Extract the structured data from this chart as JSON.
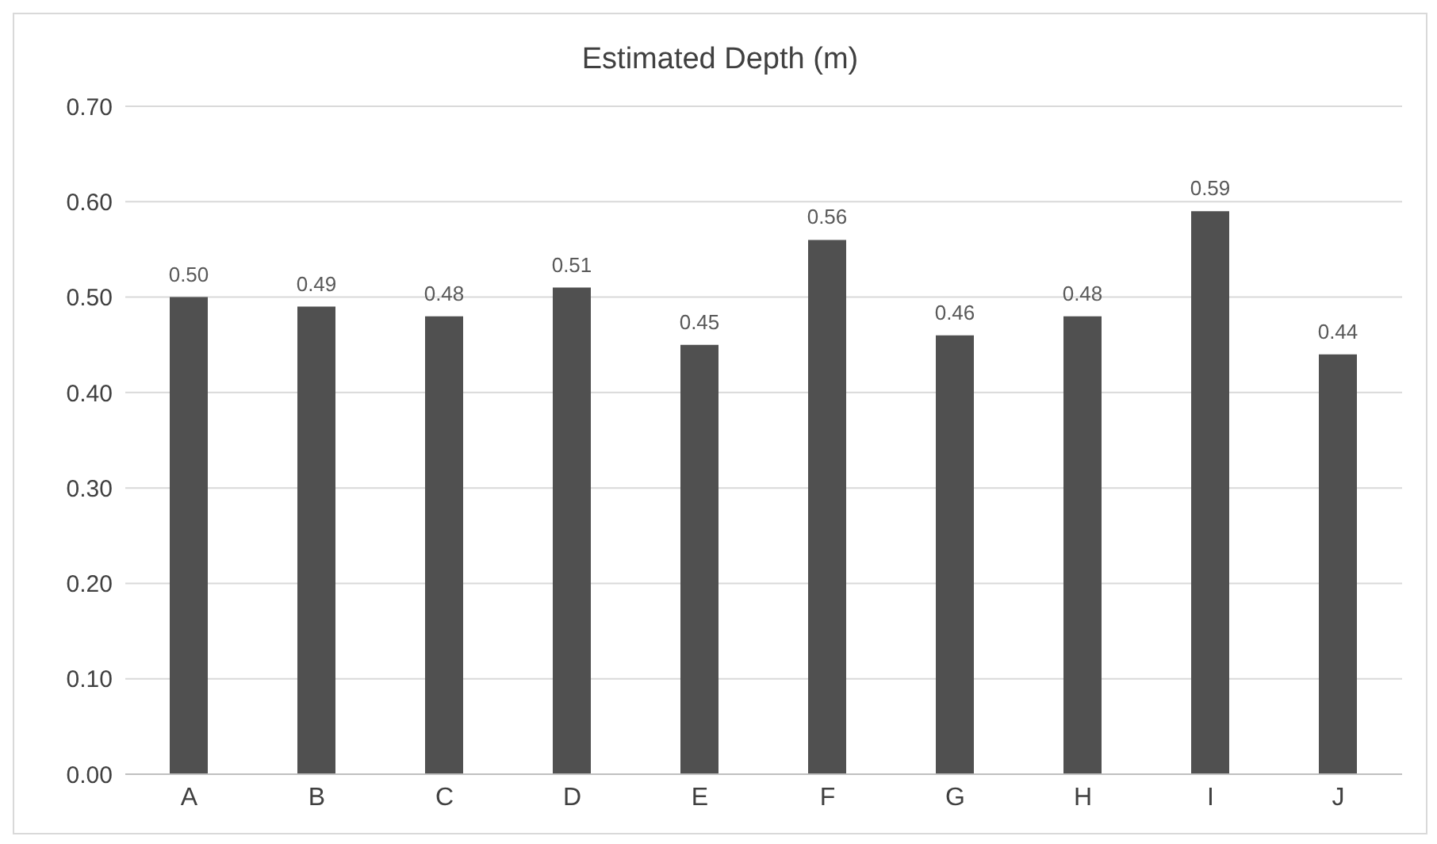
{
  "chart_data": {
    "type": "bar",
    "title": "Estimated Depth (m)",
    "categories": [
      "A",
      "B",
      "C",
      "D",
      "E",
      "F",
      "G",
      "H",
      "I",
      "J"
    ],
    "values": [
      0.5,
      0.49,
      0.48,
      0.51,
      0.45,
      0.56,
      0.46,
      0.48,
      0.59,
      0.44
    ],
    "value_labels": [
      "0.50",
      "0.49",
      "0.48",
      "0.51",
      "0.45",
      "0.56",
      "0.46",
      "0.48",
      "0.59",
      "0.44"
    ],
    "color": "#505050",
    "ylim": [
      0,
      0.7
    ],
    "yticks": [
      {
        "value": 0,
        "label": "0.00"
      },
      {
        "value": 0.1,
        "label": "0.10"
      },
      {
        "value": 0.2,
        "label": "0.20"
      },
      {
        "value": 0.3,
        "label": "0.30"
      },
      {
        "value": 0.4,
        "label": "0.40"
      },
      {
        "value": 0.5,
        "label": "0.50"
      },
      {
        "value": 0.6,
        "label": "0.60"
      },
      {
        "value": 0.7,
        "label": "0.70"
      }
    ],
    "grid": "y",
    "legend": false
  }
}
